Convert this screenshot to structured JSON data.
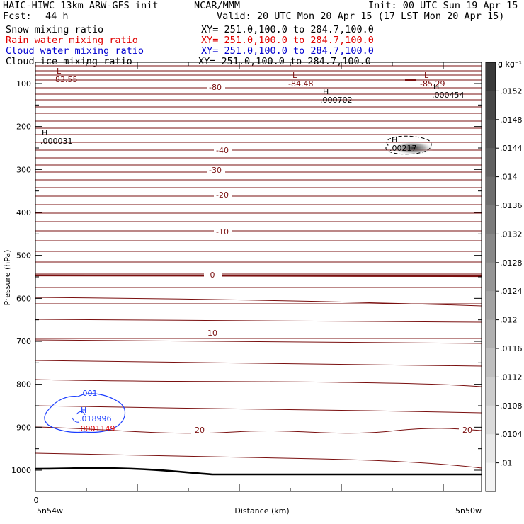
{
  "header": {
    "model": "HAIC-HIWC 13km ARW-GFS init",
    "org": "NCAR/MMM",
    "init": "Init: 00 UTC Sun 19 Apr 15",
    "fcst_label": "Fcst:",
    "fcst_value": "44 h",
    "valid": "Valid: 20 UTC Mon 20 Apr 15 (17 LST Mon 20 Apr 15)",
    "fields": [
      {
        "name": "Snow mixing ratio",
        "xy": "XY= 251.0,100.0 to 284.7,100.0",
        "color": "#000000"
      },
      {
        "name": "Rain water mixing ratio",
        "xy": "XY= 251.0,100.0 to 284.7,100.0",
        "color": "#e00000"
      },
      {
        "name": "Cloud water mixing ratio",
        "xy": "XY= 251.0,100.0 to 284.7,100.0",
        "color": "#0000d0"
      },
      {
        "name": "Cloud ice mixing ratio",
        "xy": "XY= 251.0,100.0 to 284.7,100.0",
        "color": "#000000"
      }
    ]
  },
  "chart_data": {
    "type": "contour-cross-section",
    "ylabel": "Pressure (hPa)",
    "xlabel": "Distance (km)",
    "y_range": [
      1050,
      50
    ],
    "y_ticks": [
      100,
      200,
      300,
      400,
      500,
      600,
      700,
      800,
      900,
      1000
    ],
    "x_tick_label": "0",
    "x_left_label": "5n54w",
    "x_right_label": "5n50w",
    "temperature_contours": [
      {
        "value": -80,
        "label": "-80"
      },
      {
        "value": -40,
        "label": "-40"
      },
      {
        "value": -30,
        "label": "-30"
      },
      {
        "value": -20,
        "label": "-20"
      },
      {
        "value": -10,
        "label": "-10"
      },
      {
        "value": 0,
        "label": "0"
      },
      {
        "value": 10,
        "label": "10"
      },
      {
        "value": 20,
        "label": "20"
      }
    ],
    "extrema_labels": [
      {
        "type": "L",
        "value": "-83.55"
      },
      {
        "type": "L",
        "value": "-84.48"
      },
      {
        "type": "L",
        "value": "-85.29"
      },
      {
        "type": "H",
        "value": ".000031"
      },
      {
        "type": "H",
        "value": ".000702"
      },
      {
        "type": "H",
        "value": ".000454"
      },
      {
        "type": "H",
        "value": ".00217"
      },
      {
        "type": "H",
        "value": ".018996"
      },
      {
        "type": "",
        "value": ".0001149"
      },
      {
        "type": "",
        "value": ".001"
      }
    ],
    "colorbar": {
      "unit": "g kg⁻¹",
      "ticks": [
        ".0152",
        ".0148",
        ".0144",
        ".014",
        ".0136",
        ".0132",
        ".0128",
        ".0124",
        ".012",
        ".0116",
        ".0112",
        ".0108",
        ".0104",
        ".01"
      ],
      "colors": [
        "#3a3a3a",
        "#474747",
        "#545454",
        "#616161",
        "#6e6e6e",
        "#7b7b7b",
        "#888888",
        "#959595",
        "#a2a2a2",
        "#b0b0b0",
        "#bebebe",
        "#cccccc",
        "#dadada",
        "#e8e8e8",
        "#f4f4f4"
      ]
    },
    "contour_color": "#7a0f0f"
  }
}
